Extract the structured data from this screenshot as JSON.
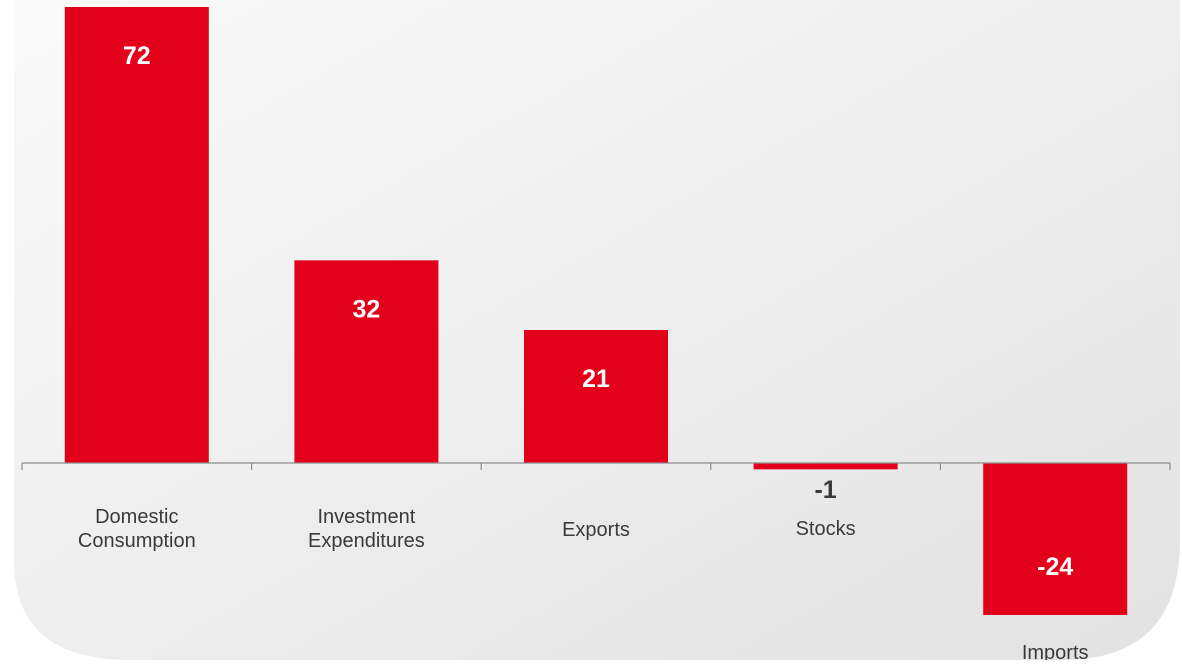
{
  "colors": {
    "bar": "#e2001a",
    "panel_light": "#fafafa",
    "panel_dark": "#e2e2e2",
    "axis": "#8c8c8c",
    "label_inside": "#ffffff",
    "label_outside": "#3a3a3a"
  },
  "chart_data": {
    "type": "bar",
    "categories": [
      [
        "Domestic",
        "Consumption"
      ],
      [
        "Investment",
        "Expenditures"
      ],
      [
        "Exports"
      ],
      [
        "Stocks"
      ],
      [
        "Imports"
      ]
    ],
    "values": [
      72,
      32,
      21,
      -1,
      -24
    ],
    "value_labels": [
      "72",
      "32",
      "21",
      "-1",
      "-24"
    ],
    "title": "",
    "xlabel": "",
    "ylabel": "",
    "grid": false,
    "legend": "none"
  }
}
